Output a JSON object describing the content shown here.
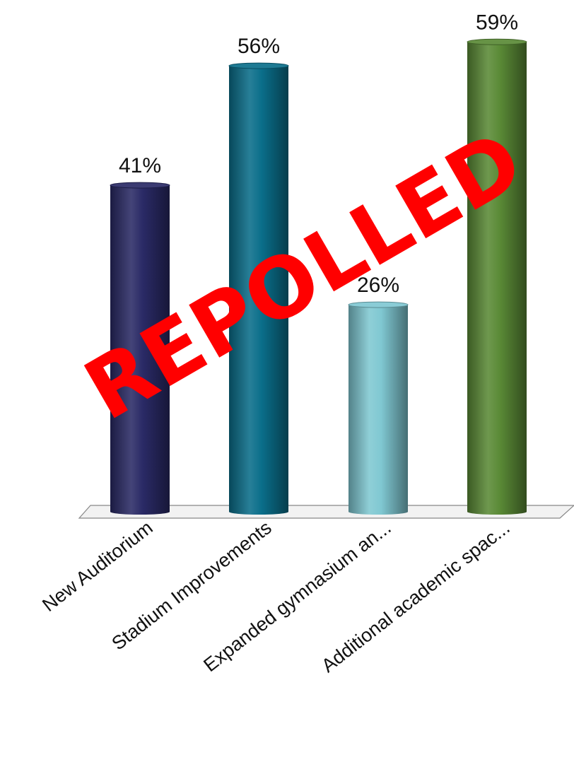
{
  "chart_data": {
    "type": "bar",
    "style": "3d-cylinder",
    "categories": [
      "New Auditorium",
      "Stadium Improvements",
      "Expanded gymnasium an...",
      "Additional academic spac..."
    ],
    "values": [
      41,
      56,
      26,
      59
    ],
    "value_labels": [
      "41%",
      "56%",
      "26%",
      "59%"
    ],
    "colors": [
      "#2a2a66",
      "#0a6e8a",
      "#80c8d2",
      "#5a8a36"
    ],
    "ylim": [
      0,
      60
    ],
    "grid": false,
    "legend": "none"
  },
  "overlay": {
    "stamp_text": "REPOLLED",
    "stamp_color": "#ff0000"
  }
}
